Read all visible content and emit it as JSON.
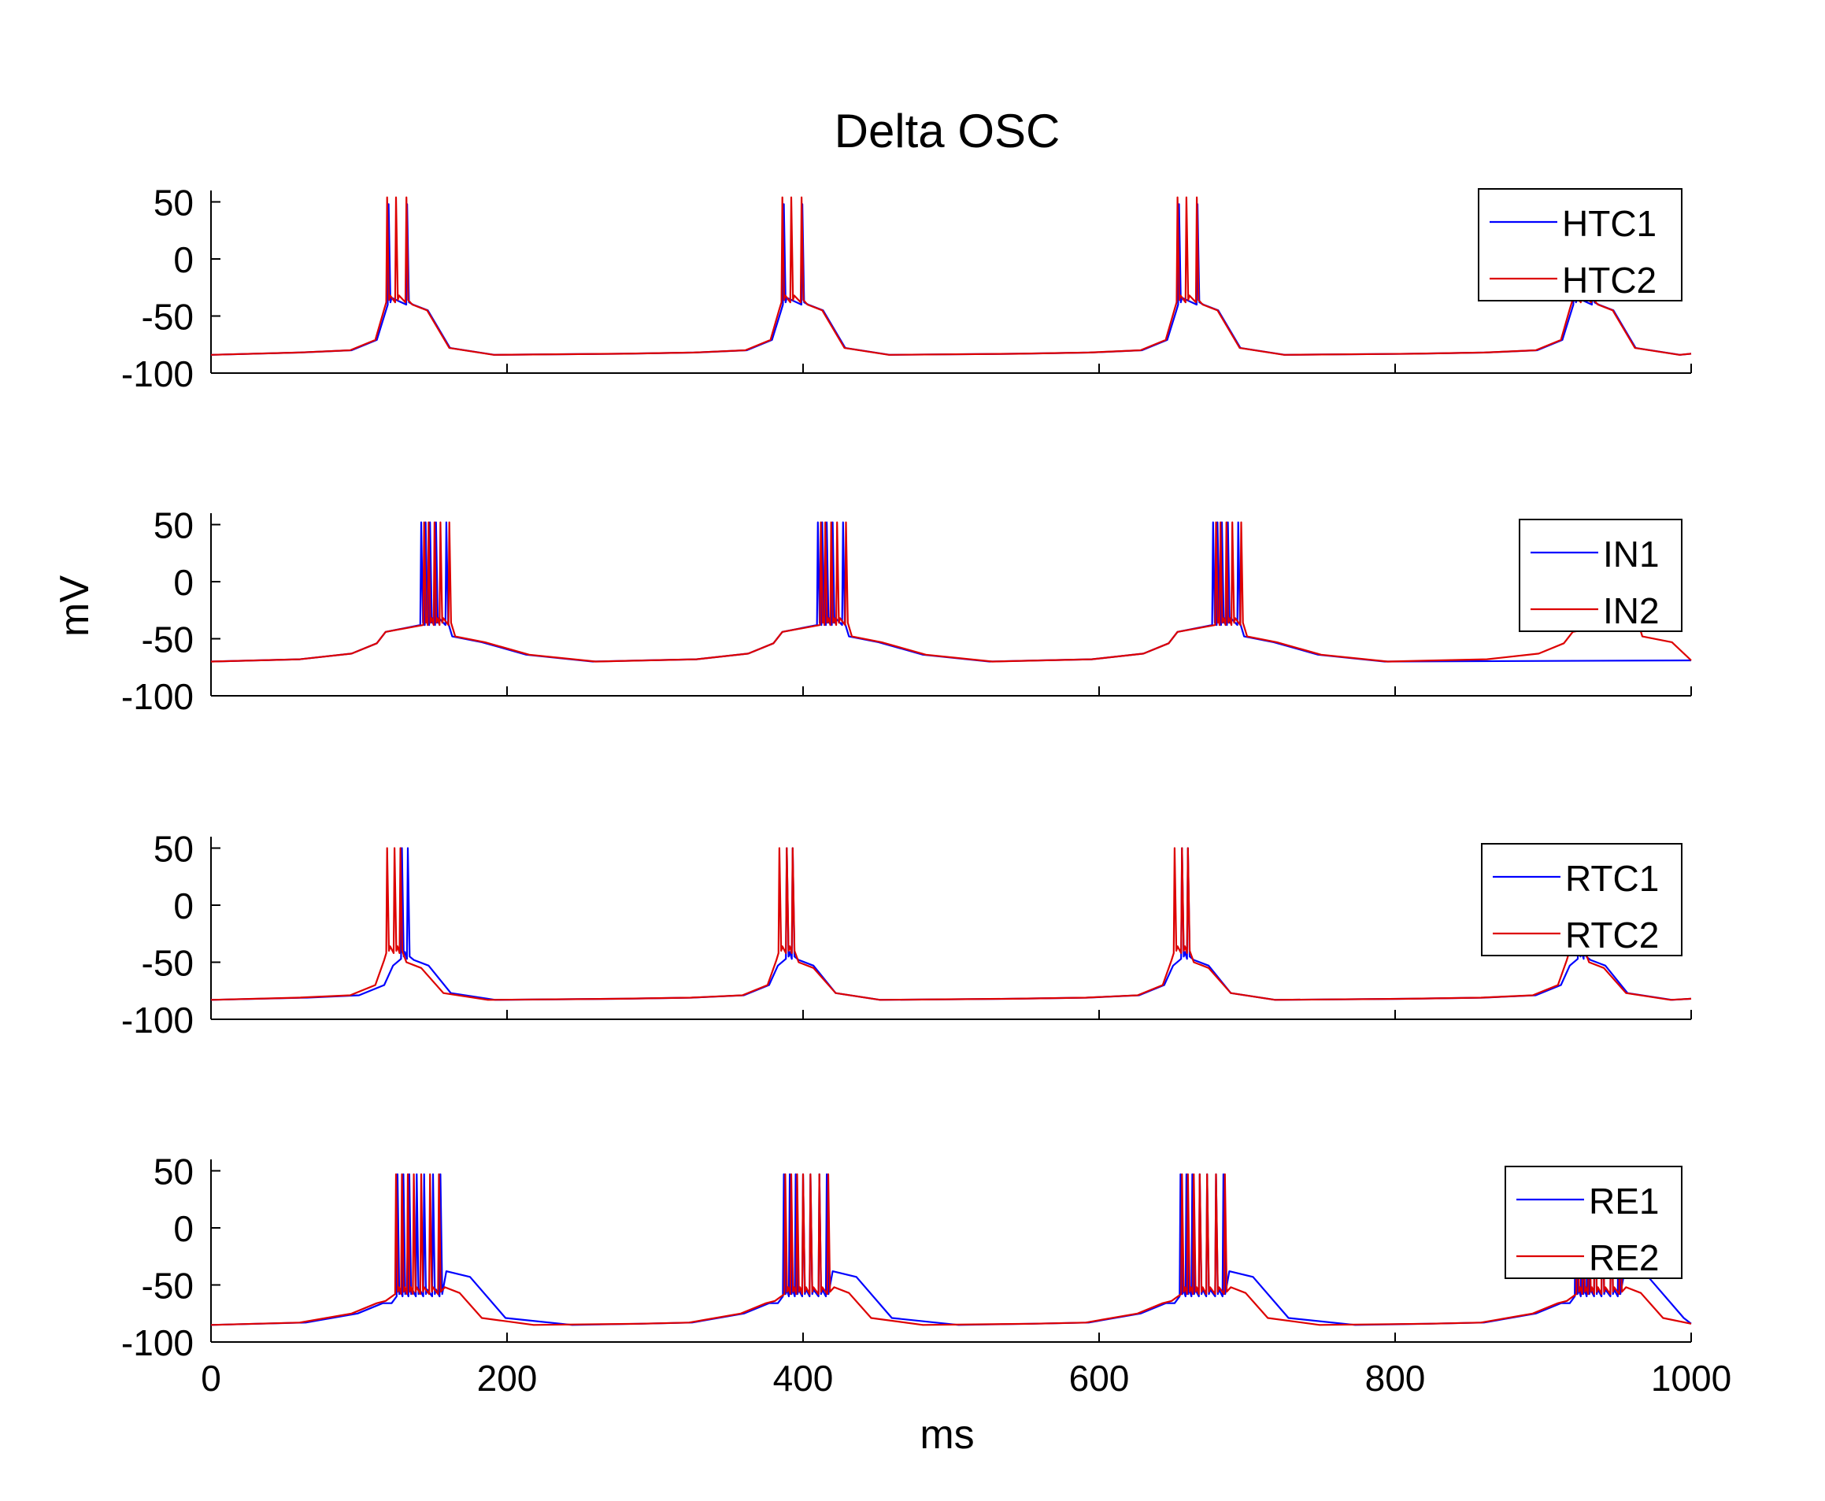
{
  "title": "Delta OSC",
  "xlabel": "ms",
  "ylabel": "mV",
  "colors": {
    "series1": "#0000ff",
    "series2": "#dd0000",
    "axis": "#000000"
  },
  "chart_data": [
    {
      "type": "line",
      "panel": 1,
      "xlim": [
        0,
        1000
      ],
      "ylim": [
        -100,
        60
      ],
      "yticks": [
        50,
        0,
        -50,
        -100
      ],
      "xticks": [
        0,
        200,
        400,
        600,
        800,
        1000
      ],
      "show_xtick_labels": false,
      "legend_position": "top-right",
      "series": [
        {
          "name": "HTC1",
          "burst_starts": [
            120,
            387,
            654,
            921
          ],
          "spike_offsets": [
            0,
            12.5
          ],
          "spike_peak": 48,
          "baseline": -84,
          "pre_rise": -83,
          "trough": -38,
          "trough_offset": 7,
          "after": -40,
          "after_offset": 22,
          "tail_len": 25,
          "settle_len": 30
        },
        {
          "name": "HTC2",
          "burst_starts": [
            119,
            386,
            653,
            920
          ],
          "spike_offsets": [
            0,
            6,
            13
          ],
          "spike_peak": 54,
          "baseline": -84,
          "pre_rise": -83,
          "trough": -36,
          "trough_offset": 6,
          "after": -40,
          "after_offset": 22,
          "tail_len": 25,
          "settle_len": 30
        }
      ]
    },
    {
      "type": "line",
      "panel": 2,
      "xlim": [
        0,
        1000
      ],
      "ylim": [
        -100,
        60
      ],
      "yticks": [
        50,
        0,
        -50,
        -100
      ],
      "xticks": [
        0,
        200,
        400,
        600,
        800,
        1000
      ],
      "show_xtick_labels": false,
      "legend_position": "top-right",
      "series": [
        {
          "name": "IN1",
          "burst_starts": [
            120,
            388,
            655
          ],
          "spike_offsets": [
            22,
            25,
            28,
            32,
            39
          ],
          "spike_peak": 52,
          "baseline": -70,
          "pre_rise": -66,
          "trough": -36,
          "trough_offset": 22,
          "after": -48,
          "after_offset": 43,
          "tail_len": 50,
          "settle_len": 45
        },
        {
          "name": "IN2",
          "burst_starts": [
            120,
            388,
            655,
            922
          ],
          "spike_offsets": [
            24,
            27,
            31,
            35,
            41
          ],
          "spike_peak": 52,
          "baseline": -70,
          "pre_rise": -66,
          "trough": -36,
          "trough_offset": 24,
          "after": -48,
          "after_offset": 46,
          "tail_len": 50,
          "settle_len": 45
        }
      ]
    },
    {
      "type": "line",
      "panel": 3,
      "xlim": [
        0,
        1000
      ],
      "ylim": [
        -100,
        60
      ],
      "yticks": [
        50,
        0,
        -50,
        -100
      ],
      "xticks": [
        0,
        200,
        400,
        600,
        800,
        1000
      ],
      "show_xtick_labels": false,
      "legend_position": "top-right",
      "series": [
        {
          "name": "RTC1",
          "burst_starts": [
            125,
            385,
            652,
            920
          ],
          "spike_offsets": [
            4,
            8
          ],
          "spike_peak": 50,
          "baseline": -83,
          "pre_rise": -82,
          "trough": -45,
          "trough_offset": 3,
          "after": -48,
          "after_offset": 16,
          "tail_len": 25,
          "settle_len": 30
        },
        {
          "name": "RTC2",
          "burst_starts": [
            119,
            384,
            651,
            918
          ],
          "spike_offsets": [
            0,
            5,
            9
          ],
          "spike_peak": 50,
          "baseline": -83,
          "pre_rise": -82,
          "trough": -40,
          "trough_offset": 3,
          "after": -50,
          "after_offset": 17,
          "tail_len": 25,
          "settle_len": 30
        }
      ]
    },
    {
      "type": "line",
      "panel": 4,
      "xlim": [
        0,
        1000
      ],
      "ylim": [
        -100,
        60
      ],
      "yticks": [
        50,
        0,
        -50,
        -100
      ],
      "xticks": [
        0,
        200,
        400,
        600,
        800,
        1000
      ],
      "show_xtick_labels": true,
      "legend_position": "top-right",
      "series": [
        {
          "name": "RE1",
          "burst_starts": [
            124,
            385,
            653,
            920
          ],
          "spike_offsets": [
            2,
            6,
            10,
            15,
            20,
            26,
            31
          ],
          "spike_peak": 47,
          "baseline": -85,
          "pre_rise": -78,
          "trough": -58,
          "trough_offset": 2,
          "after": -38,
          "after_offset": 32,
          "tail_len": 40,
          "settle_len": 45
        },
        {
          "name": "RE2",
          "burst_starts": [
            120,
            383,
            651,
            918
          ],
          "spike_offsets": [
            5,
            9,
            13,
            17,
            22,
            28,
            34
          ],
          "spike_peak": 47,
          "baseline": -85,
          "pre_rise": -78,
          "trough": -56,
          "trough_offset": 5,
          "after": -52,
          "after_offset": 36,
          "tail_len": 25,
          "settle_len": 35
        }
      ]
    }
  ]
}
